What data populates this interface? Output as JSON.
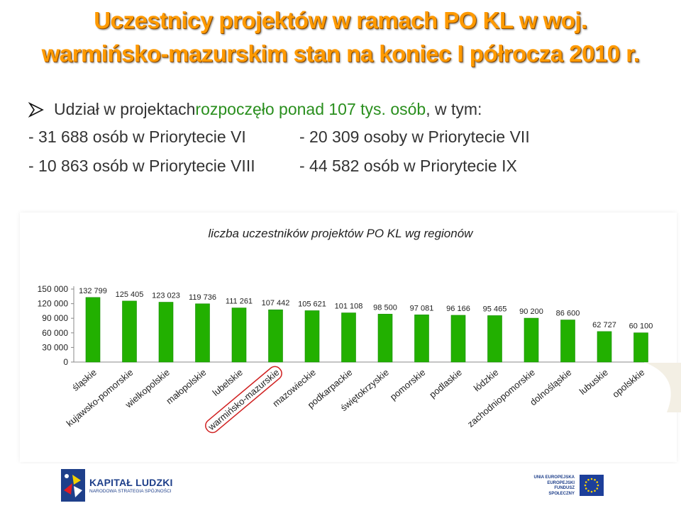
{
  "title_line1": "Uczestnicy projektów w ramach PO KL w woj.",
  "title_line2": "warmińsko-mazurskim stan na koniec I półrocza 2010 r.",
  "summary": {
    "prefix": "Udział w projektach ",
    "highlight": "rozpoczęło ponad 107 tys. osób",
    "suffix": ", w tym:",
    "items": [
      "- 31 688 osób w Priorytecie VI",
      "- 20 309 osoby w Priorytecie VII",
      "- 10 863 osób w Priorytecie VIII",
      "- 44 582 osób w Priorytecie IX"
    ]
  },
  "chart_data": {
    "type": "bar",
    "title": "liczba uczestników projektów PO KL wg regionów",
    "categories": [
      "śląskie",
      "kujawsko-pomorskie",
      "wielkopolskie",
      "małopolskie",
      "lubelskie",
      "warmińsko-mazurskie",
      "mazowieckie",
      "podkarpackie",
      "świętokrzyskie",
      "pomorskie",
      "podlaskie",
      "łódzkie",
      "zachodniopomorskie",
      "dolnośląskie",
      "lubuskie",
      "opolskkie"
    ],
    "values": [
      132799,
      125405,
      123023,
      119736,
      111261,
      107442,
      105621,
      101108,
      98500,
      97081,
      96166,
      95465,
      90200,
      86600,
      62727,
      60100
    ],
    "value_labels": [
      "132 799",
      "125 405",
      "123 023",
      "119 736",
      "111 261",
      "107 442",
      "105 621",
      "101 108",
      "98 500",
      "97 081",
      "96 166",
      "95 465",
      "90 200",
      "86 600",
      "62 727",
      "60 100"
    ],
    "y_ticks": [
      "0",
      "30 000",
      "60 000",
      "90 000",
      "120 000",
      "150 000"
    ],
    "ylim": [
      0,
      150000
    ],
    "xlabel": "",
    "ylabel": "",
    "grid": false,
    "bar_color": "#22b000",
    "highlight_category": "warmińsko-mazurskie"
  },
  "footer": {
    "kl_name": "KAPITAŁ LUDZKI",
    "kl_sub": "NARODOWA STRATEGIA SPÓJNOŚCI",
    "eu_line1": "UNIA EUROPEJSKA",
    "eu_line2": "EUROPEJSKI",
    "eu_line3": "FUNDUSZ SPOŁECZNY"
  },
  "colors": {
    "title": "#ff9a00",
    "highlight": "#2a8f1e",
    "bar": "#22b000"
  }
}
